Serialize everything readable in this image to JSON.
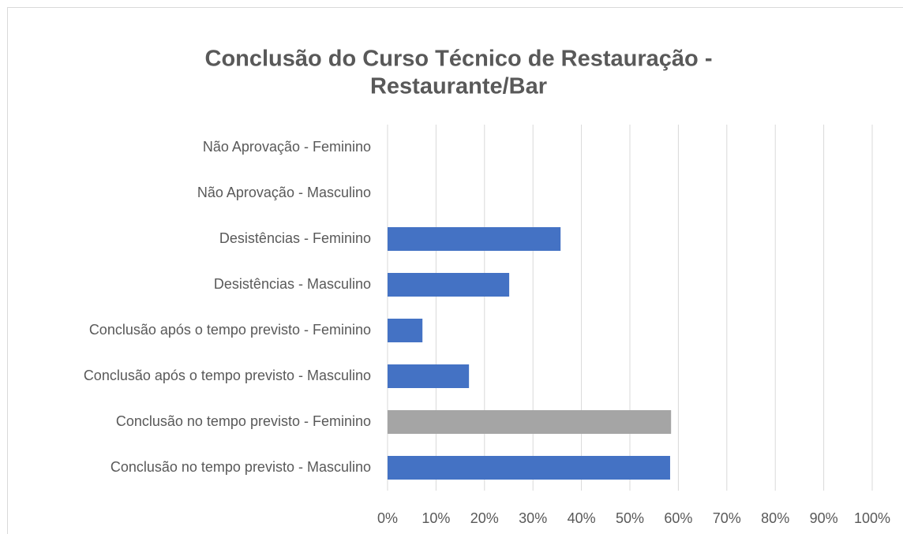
{
  "chart_data": {
    "type": "barh",
    "title": [
      "Conclusão do Curso Técnico de Restauração -",
      "Restaurante/Bar"
    ],
    "categories": [
      "Não Aprovação - Feminino",
      "Não Aprovação - Masculino",
      "Desistências - Feminino",
      "Desistências - Masculino",
      "Conclusão após o tempo previsto - Feminino",
      "Conclusão após o tempo previsto - Masculino",
      "Conclusão no tempo previsto - Feminino",
      "Conclusão no tempo previsto - Masculino"
    ],
    "values": [
      0,
      0,
      35.7,
      25.1,
      7.2,
      16.8,
      58.5,
      58.3
    ],
    "colors": [
      "#4472c4",
      "#4472c4",
      "#4472c4",
      "#4472c4",
      "#4472c4",
      "#4472c4",
      "#a5a5a5",
      "#4472c4"
    ],
    "xlim": [
      0,
      100
    ],
    "xticks": [
      {
        "value": 0,
        "label": "0%"
      },
      {
        "value": 10,
        "label": "10%"
      },
      {
        "value": 20,
        "label": "20%"
      },
      {
        "value": 30,
        "label": "30%"
      },
      {
        "value": 40,
        "label": "40%"
      },
      {
        "value": 50,
        "label": "50%"
      },
      {
        "value": 60,
        "label": "60%"
      },
      {
        "value": 70,
        "label": "70%"
      },
      {
        "value": 80,
        "label": "80%"
      },
      {
        "value": 90,
        "label": "90%"
      },
      {
        "value": 100,
        "label": "100%"
      }
    ],
    "grid": true
  }
}
